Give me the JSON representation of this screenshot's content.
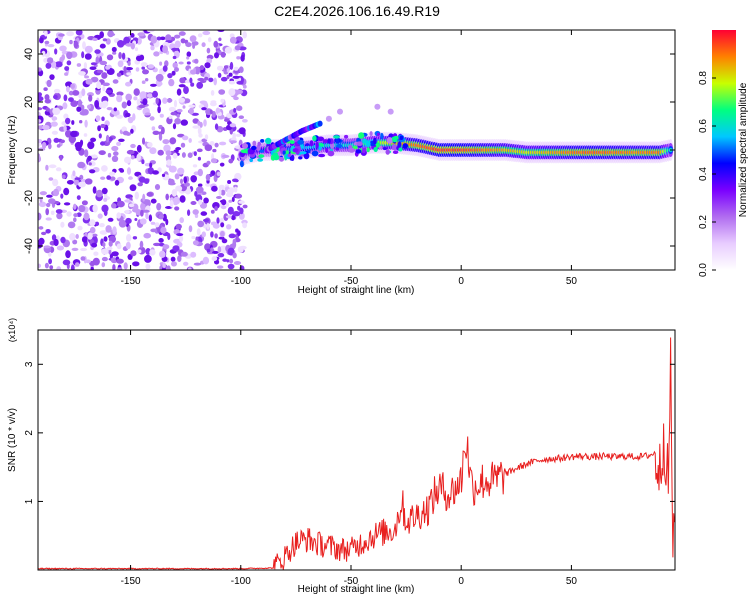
{
  "figure_title": "C2E4.2026.106.16.49.R19",
  "chart_data": [
    {
      "type": "heatmap",
      "name": "spectrogram",
      "xlabel": "Height of straight line (km)",
      "ylabel": "Frequency (Hz)",
      "xlim": [
        -192,
        97
      ],
      "ylim": [
        -50,
        50
      ],
      "x_ticks": [
        -150,
        -100,
        -50,
        0,
        50
      ],
      "y_ticks": [
        -40,
        -20,
        0,
        20,
        40
      ],
      "colorbar": {
        "label": "Normalized spectral amplitude",
        "range": [
          0,
          1
        ],
        "ticks": [
          "0.0",
          "0.2",
          "0.4",
          "0.6",
          "0.8"
        ],
        "tick_values": [
          0.0,
          0.2,
          0.4,
          0.6,
          0.8
        ],
        "colors": [
          "#ffffff",
          "#e8ccff",
          "#b06cf0",
          "#7a00ff",
          "#0000ff",
          "#00c8ff",
          "#00ff80",
          "#c8ff00",
          "#ff8000",
          "#ff0033"
        ]
      },
      "noise_region_km": [
        -192,
        -98
      ],
      "ridge": {
        "x": [
          -100,
          -90,
          -80,
          -70,
          -60,
          -50,
          -40,
          -30,
          -20,
          -10,
          0,
          10,
          20,
          30,
          40,
          50,
          60,
          70,
          80,
          90,
          95
        ],
        "freq": [
          -2,
          0,
          0,
          1,
          2,
          2,
          3,
          3,
          2,
          0,
          0,
          0,
          0,
          -1,
          -1,
          -1,
          -1,
          -1,
          -1,
          -1,
          0
        ],
        "amp": [
          0.3,
          0.4,
          0.5,
          0.55,
          0.6,
          0.6,
          0.7,
          0.85,
          0.9,
          0.95,
          0.95,
          0.9,
          0.85,
          0.8,
          0.85,
          0.9,
          0.92,
          0.9,
          0.88,
          0.9,
          0.6
        ]
      },
      "secondary_ridge": {
        "x": [
          -88,
          -80,
          -72,
          -64
        ],
        "freq": [
          0,
          4,
          8,
          11
        ]
      }
    },
    {
      "type": "line",
      "name": "snr",
      "xlabel": "Height of straight line (km)",
      "ylabel": "SNR (10 * v/v)",
      "y_multiplier": "(x10⁴)",
      "xlim": [
        -192,
        97
      ],
      "ylim": [
        0,
        3.5
      ],
      "x_ticks": [
        -150,
        -100,
        -50,
        0,
        50
      ],
      "y_ticks": [
        1,
        2,
        3
      ],
      "color": "#e8201f",
      "series": [
        {
          "name": "SNR",
          "x": [
            -192,
            -100,
            -85,
            -80,
            -75,
            -70,
            -65,
            -60,
            -55,
            -50,
            -45,
            -40,
            -35,
            -30,
            -27,
            -25,
            -20,
            -15,
            -12,
            -10,
            -5,
            0,
            2,
            5,
            10,
            15,
            20,
            25,
            30,
            35,
            40,
            45,
            50,
            55,
            60,
            65,
            70,
            75,
            80,
            85,
            88,
            90,
            92,
            94,
            95,
            96,
            97
          ],
          "y": [
            0.02,
            0.02,
            0.03,
            0.2,
            0.4,
            0.45,
            0.38,
            0.35,
            0.3,
            0.3,
            0.4,
            0.5,
            0.55,
            0.6,
            1.0,
            0.7,
            0.8,
            0.9,
            1.1,
            1.2,
            1.1,
            1.3,
            1.95,
            1.2,
            1.3,
            1.3,
            1.4,
            1.48,
            1.55,
            1.6,
            1.62,
            1.63,
            1.65,
            1.66,
            1.65,
            1.66,
            1.65,
            1.66,
            1.65,
            1.67,
            1.7,
            1.4,
            2.0,
            1.2,
            3.0,
            0.5,
            0.6
          ]
        }
      ]
    }
  ]
}
